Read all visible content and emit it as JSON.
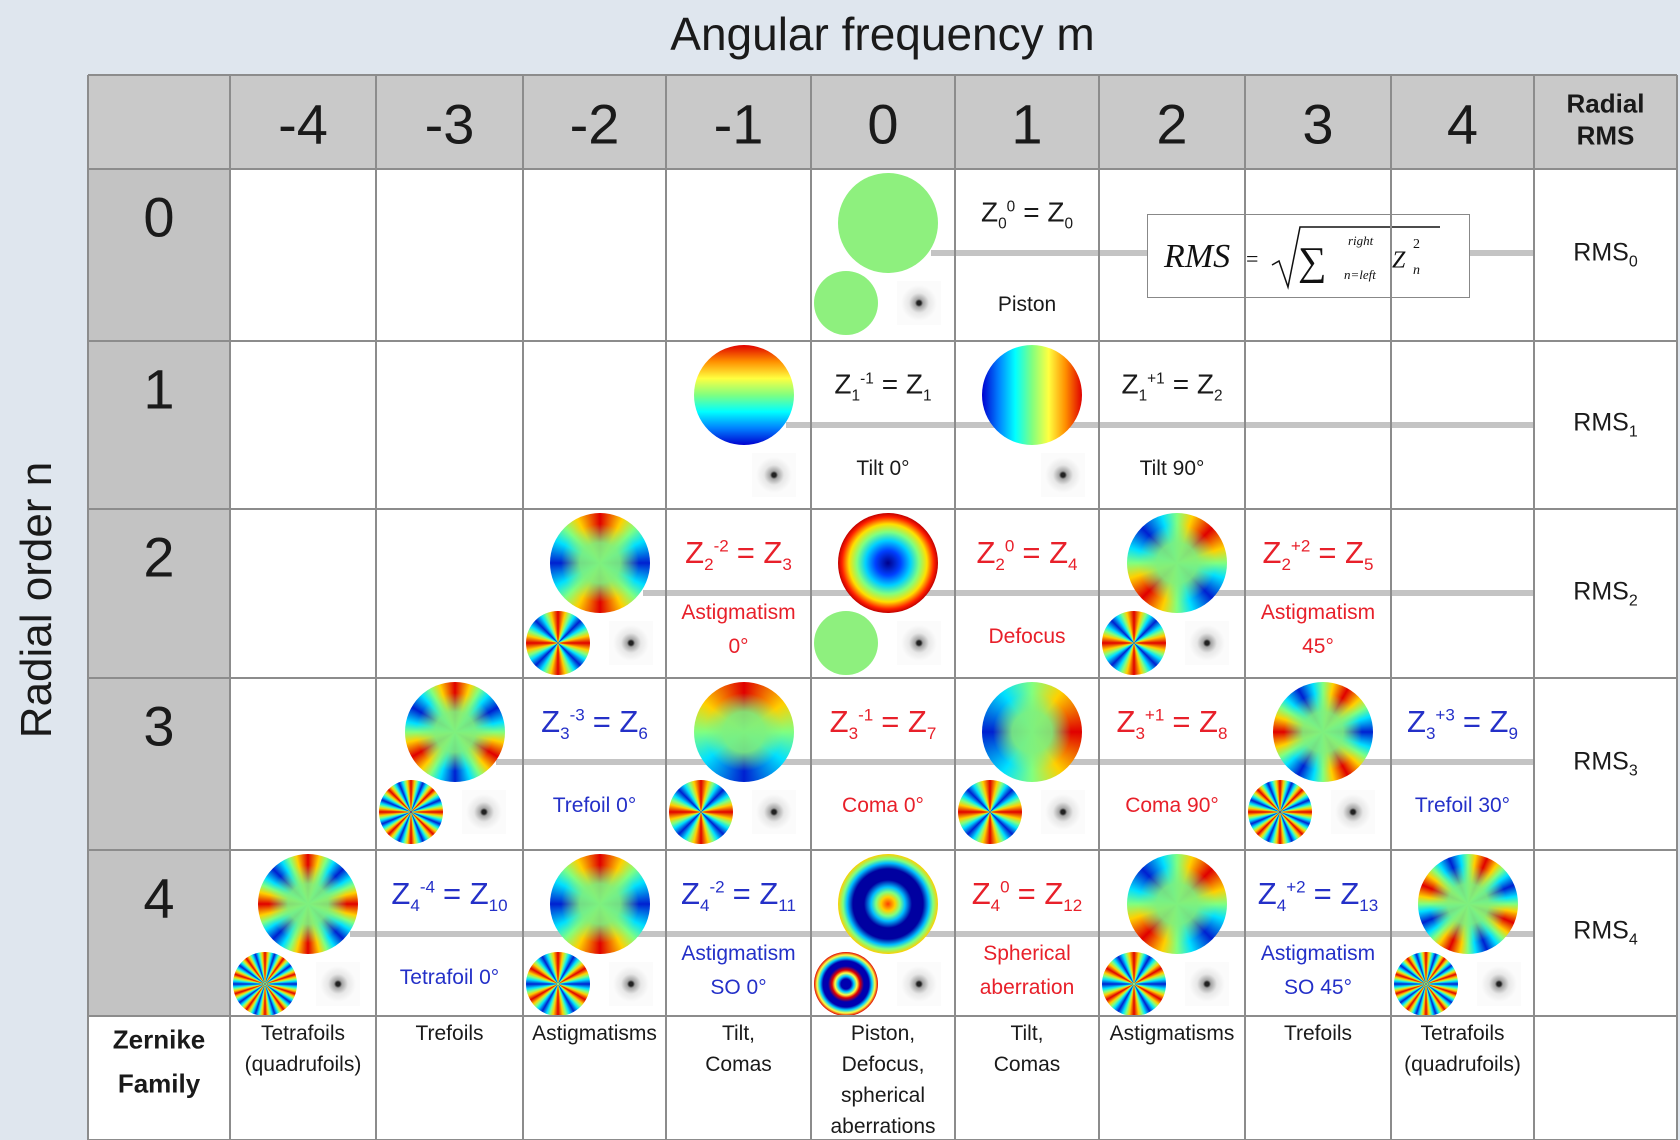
{
  "title": "Angular frequency m",
  "y_axis_label": "Radial order n",
  "column_headers": [
    "-4",
    "-3",
    "-2",
    "-1",
    "0",
    "1",
    "2",
    "3",
    "4"
  ],
  "rms_header": [
    "Radial",
    "RMS"
  ],
  "rows": [
    {
      "n": "0",
      "rms": {
        "text": "RMS",
        "sub": "0"
      },
      "terms": [
        {
          "m": 0,
          "label": {
            "z": "Z",
            "sub": "0",
            "sup": "0",
            "eq": "= Z",
            "j": "0"
          },
          "name": [
            "Piston"
          ],
          "color": "#1a1a1a"
        }
      ]
    },
    {
      "n": "1",
      "rms": {
        "text": "RMS",
        "sub": "1"
      },
      "terms": [
        {
          "m": -1,
          "label": {
            "z": "Z",
            "sub": "1",
            "sup": "-1",
            "eq": "= Z",
            "j": "1"
          },
          "name": [
            "Tilt 0°"
          ],
          "color": "#1a1a1a"
        },
        {
          "m": 1,
          "label": {
            "z": "Z",
            "sub": "1",
            "sup": "+1",
            "eq": "= Z",
            "j": "2"
          },
          "name": [
            "Tilt 90°"
          ],
          "color": "#1a1a1a"
        }
      ]
    },
    {
      "n": "2",
      "rms": {
        "text": "RMS",
        "sub": "2"
      },
      "terms": [
        {
          "m": -2,
          "label": {
            "z": "Z",
            "sub": "2",
            "sup": "-2",
            "eq": "= Z",
            "j": "3"
          },
          "name": [
            "Astigmatism",
            "0°"
          ],
          "color": "#e8202a"
        },
        {
          "m": 0,
          "label": {
            "z": "Z",
            "sub": "2",
            "sup": "0",
            "eq": "= Z",
            "j": "4"
          },
          "name": [
            "Defocus"
          ],
          "color": "#e8202a"
        },
        {
          "m": 2,
          "label": {
            "z": "Z",
            "sub": "2",
            "sup": "+2",
            "eq": "= Z",
            "j": "5"
          },
          "name": [
            "Astigmatism",
            "45°"
          ],
          "color": "#e8202a"
        }
      ]
    },
    {
      "n": "3",
      "rms": {
        "text": "RMS",
        "sub": "3"
      },
      "terms": [
        {
          "m": -3,
          "label": {
            "z": "Z",
            "sub": "3",
            "sup": "-3",
            "eq": "= Z",
            "j": "6"
          },
          "name": [
            "Trefoil 0°"
          ],
          "color": "#2430c8"
        },
        {
          "m": -1,
          "label": {
            "z": "Z",
            "sub": "3",
            "sup": "-1",
            "eq": "= Z",
            "j": "7"
          },
          "name": [
            "Coma 0°"
          ],
          "color": "#e8202a"
        },
        {
          "m": 1,
          "label": {
            "z": "Z",
            "sub": "3",
            "sup": "+1",
            "eq": "= Z",
            "j": "8"
          },
          "name": [
            "Coma 90°"
          ],
          "color": "#e8202a"
        },
        {
          "m": 3,
          "label": {
            "z": "Z",
            "sub": "3",
            "sup": "+3",
            "eq": "= Z",
            "j": "9"
          },
          "name": [
            "Trefoil 30°"
          ],
          "color": "#2430c8"
        }
      ]
    },
    {
      "n": "4",
      "rms": {
        "text": "RMS",
        "sub": "4"
      },
      "terms": [
        {
          "m": -4,
          "label": {
            "z": "Z",
            "sub": "4",
            "sup": "-4",
            "eq": "= Z",
            "j": "10"
          },
          "name": [
            "Tetrafoil 0°"
          ],
          "color": "#2430c8"
        },
        {
          "m": -2,
          "label": {
            "z": "Z",
            "sub": "4",
            "sup": "-2",
            "eq": "= Z",
            "j": "11"
          },
          "name": [
            "Astigmatism",
            "SO 0°"
          ],
          "color": "#2430c8"
        },
        {
          "m": 0,
          "label": {
            "z": "Z",
            "sub": "4",
            "sup": "0",
            "eq": "= Z",
            "j": "12"
          },
          "name": [
            "Spherical",
            "aberration"
          ],
          "color": "#e8202a"
        },
        {
          "m": 2,
          "label": {
            "z": "Z",
            "sub": "4",
            "sup": "+2",
            "eq": "= Z",
            "j": "13"
          },
          "name": [
            "Astigmatism",
            "SO 45°"
          ],
          "color": "#2430c8"
        },
        {
          "m": 4
        }
      ]
    }
  ],
  "rms_formula": {
    "lhs": "RMS",
    "eq": "=",
    "sigma": "∑",
    "upper": "right",
    "lower": "n=left",
    "z": "Z",
    "sup": "2",
    "sub": "n"
  },
  "family": {
    "header": [
      "Zernike",
      "Family"
    ],
    "entries": [
      [
        "Tetrafoils",
        "(quadrufoils)"
      ],
      [
        "Trefoils"
      ],
      [
        "Astigmatisms"
      ],
      [
        "Tilt,",
        "Comas"
      ],
      [
        "Piston,",
        "Defocus,",
        "spherical",
        "aberrations"
      ],
      [
        "Tilt,",
        "Comas"
      ],
      [
        "Astigmatisms"
      ],
      [
        "Trefoils"
      ],
      [
        "Tetrafoils",
        "(quadrufoils)"
      ]
    ]
  }
}
